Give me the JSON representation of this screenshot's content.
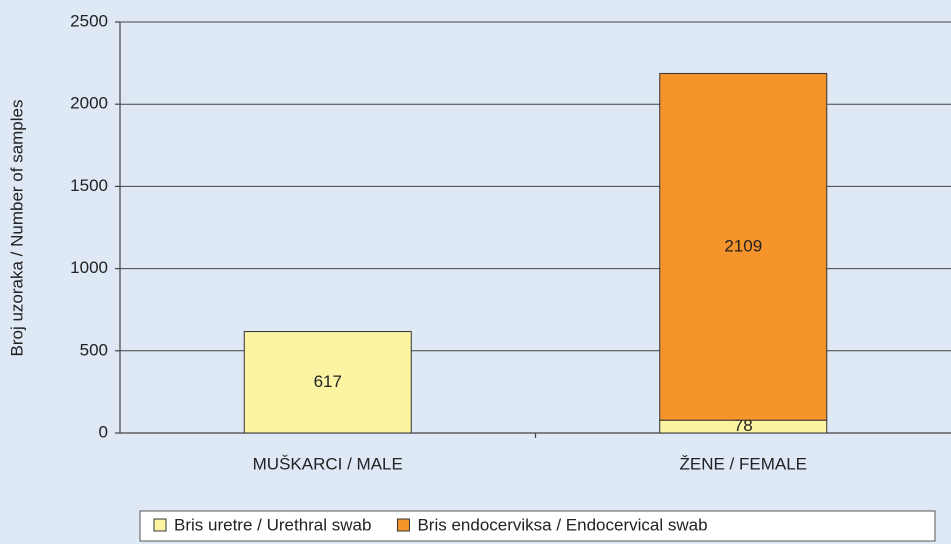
{
  "chart_data": {
    "type": "stacked_bar",
    "y_label": "Broj uzoraka / Number of samples",
    "categories": [
      "MUŠKARCI / MALE",
      "ŽENE / FEMALE"
    ],
    "series": [
      {
        "name": "Bris uretre / Urethral swab",
        "color": "#fcf4a3",
        "values": [
          617,
          78
        ]
      },
      {
        "name": "Bris endocerviksa / Endocervical swab",
        "color": "#f6942c",
        "values": [
          null,
          2109
        ]
      }
    ],
    "ylim": [
      0,
      2500
    ],
    "yticks": [
      0,
      500,
      1000,
      1500,
      2000,
      2500
    ],
    "grid": true,
    "legend": "bottom"
  }
}
